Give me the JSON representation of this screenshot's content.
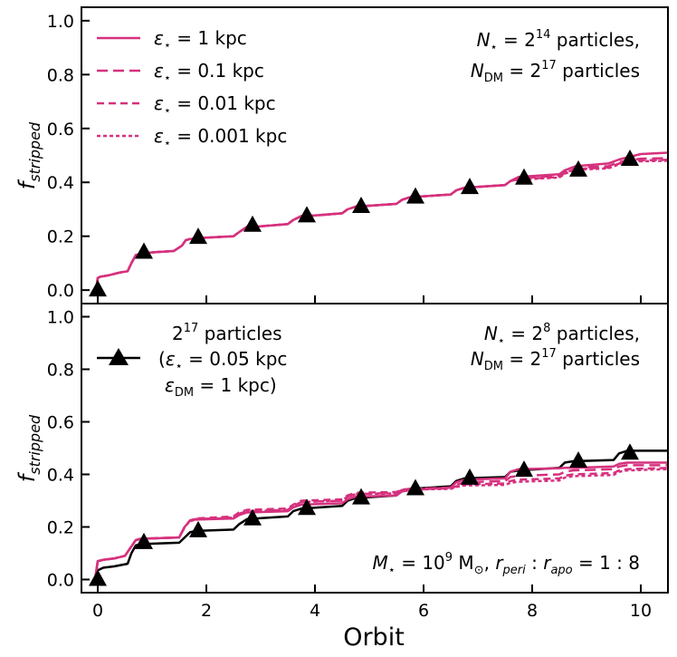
{
  "colors": {
    "magenta": "#d6317e",
    "black": "#000000"
  },
  "chart_data": [
    {
      "type": "line",
      "id": "top",
      "ylabel": "f_stripped",
      "xlim": [
        -0.3,
        10.5
      ],
      "ylim": [
        -0.05,
        1.05
      ],
      "xticks": [
        0,
        2,
        4,
        6,
        8,
        10
      ],
      "yticks": [
        "0.0",
        "0.2",
        "0.4",
        "0.6",
        "0.8",
        "1.0"
      ],
      "annotation": {
        "line1_pre": "N",
        "line1_sub": "⋆",
        "line1_mid": " = 2",
        "line1_sup": "14",
        "line1_post": " particles,",
        "line2_pre": "N",
        "line2_sub": "DM",
        "line2_mid": " = 2",
        "line2_sup": "17",
        "line2_post": " particles"
      },
      "legend": [
        {
          "label_eps": "ε",
          "label_sub": "⋆",
          "label_rest": " = 1 kpc",
          "dash": "none"
        },
        {
          "label_eps": "ε",
          "label_sub": "⋆",
          "label_rest": " = 0.1 kpc",
          "dash": "12,6"
        },
        {
          "label_eps": "ε",
          "label_sub": "⋆",
          "label_rest": " = 0.01 kpc",
          "dash": "8,5"
        },
        {
          "label_eps": "ε",
          "label_sub": "⋆",
          "label_rest": " = 0.001 kpc",
          "dash": "4,3"
        }
      ],
      "markers": {
        "x": [
          0,
          0.85,
          1.85,
          2.85,
          3.85,
          4.85,
          5.85,
          6.85,
          7.85,
          8.85,
          9.8
        ],
        "y": [
          0.0,
          0.14,
          0.195,
          0.24,
          0.275,
          0.31,
          0.345,
          0.38,
          0.415,
          0.445,
          0.485
        ]
      },
      "series": [
        {
          "name": "eps=1 kpc",
          "dash": "none",
          "x": [
            -0.1,
            -0.05,
            -0.02,
            0,
            0.05,
            0.2,
            0.4,
            0.55,
            0.62,
            0.7,
            0.8,
            1.0,
            1.4,
            1.55,
            1.62,
            1.7,
            1.8,
            2.0,
            2.5,
            2.6,
            2.75,
            3.0,
            3.5,
            3.6,
            3.75,
            4.0,
            4.5,
            4.6,
            4.75,
            5.5,
            5.6,
            5.75,
            6.5,
            6.6,
            6.75,
            7.5,
            7.6,
            7.75,
            8.5,
            8.6,
            8.8,
            9.4,
            9.6,
            9.8,
            10.0,
            10.5
          ],
          "y": [
            -0.01,
            -0.005,
            0.02,
            0.045,
            0.05,
            0.055,
            0.065,
            0.07,
            0.1,
            0.13,
            0.135,
            0.14,
            0.145,
            0.165,
            0.185,
            0.19,
            0.192,
            0.195,
            0.2,
            0.215,
            0.235,
            0.237,
            0.245,
            0.26,
            0.275,
            0.277,
            0.285,
            0.3,
            0.31,
            0.32,
            0.335,
            0.345,
            0.355,
            0.37,
            0.38,
            0.39,
            0.405,
            0.42,
            0.43,
            0.445,
            0.46,
            0.47,
            0.485,
            0.495,
            0.505,
            0.51
          ]
        },
        {
          "name": "eps=0.1 kpc",
          "dash": "12,6",
          "x": [
            -0.1,
            -0.05,
            -0.02,
            0,
            0.05,
            0.2,
            0.4,
            0.55,
            0.62,
            0.7,
            0.8,
            1.0,
            1.4,
            1.55,
            1.62,
            1.7,
            1.8,
            2.0,
            2.5,
            2.6,
            2.75,
            3.0,
            3.5,
            3.6,
            3.75,
            4.0,
            4.5,
            4.6,
            4.75,
            5.5,
            5.6,
            5.75,
            6.5,
            6.6,
            6.75,
            7.5,
            7.6,
            7.75,
            8.5,
            8.6,
            8.8,
            9.4,
            9.6,
            9.8,
            10.0,
            10.5
          ],
          "y": [
            -0.01,
            -0.005,
            0.02,
            0.045,
            0.05,
            0.055,
            0.065,
            0.07,
            0.1,
            0.13,
            0.135,
            0.14,
            0.145,
            0.165,
            0.185,
            0.19,
            0.192,
            0.195,
            0.2,
            0.215,
            0.235,
            0.237,
            0.245,
            0.26,
            0.275,
            0.277,
            0.285,
            0.3,
            0.31,
            0.32,
            0.335,
            0.345,
            0.355,
            0.37,
            0.38,
            0.39,
            0.405,
            0.415,
            0.425,
            0.44,
            0.455,
            0.46,
            0.475,
            0.482,
            0.488,
            0.49
          ]
        },
        {
          "name": "eps=0.01 kpc",
          "dash": "8,5",
          "x": [
            -0.1,
            -0.05,
            -0.02,
            0,
            0.05,
            0.2,
            0.4,
            0.55,
            0.62,
            0.7,
            0.8,
            1.0,
            1.4,
            1.55,
            1.62,
            1.7,
            1.8,
            2.0,
            2.5,
            2.6,
            2.75,
            3.0,
            3.5,
            3.6,
            3.75,
            4.0,
            4.5,
            4.6,
            4.75,
            5.5,
            5.6,
            5.75,
            6.5,
            6.6,
            6.75,
            7.5,
            7.6,
            7.75,
            8.5,
            8.6,
            8.8,
            9.4,
            9.6,
            9.8,
            10.0,
            10.5
          ],
          "y": [
            -0.01,
            -0.005,
            0.02,
            0.045,
            0.05,
            0.055,
            0.065,
            0.07,
            0.1,
            0.13,
            0.135,
            0.14,
            0.145,
            0.165,
            0.185,
            0.19,
            0.192,
            0.195,
            0.2,
            0.215,
            0.235,
            0.237,
            0.245,
            0.26,
            0.275,
            0.277,
            0.285,
            0.3,
            0.31,
            0.32,
            0.335,
            0.345,
            0.355,
            0.37,
            0.38,
            0.39,
            0.405,
            0.412,
            0.42,
            0.435,
            0.45,
            0.455,
            0.47,
            0.478,
            0.482,
            0.484
          ]
        },
        {
          "name": "eps=0.001 kpc",
          "dash": "4,3",
          "x": [
            -0.1,
            -0.05,
            -0.02,
            0,
            0.05,
            0.2,
            0.4,
            0.55,
            0.62,
            0.7,
            0.8,
            1.0,
            1.4,
            1.55,
            1.62,
            1.7,
            1.8,
            2.0,
            2.5,
            2.6,
            2.75,
            3.0,
            3.5,
            3.6,
            3.75,
            4.0,
            4.5,
            4.6,
            4.75,
            5.5,
            5.6,
            5.75,
            6.5,
            6.6,
            6.75,
            7.5,
            7.6,
            7.75,
            8.5,
            8.6,
            8.8,
            9.4,
            9.6,
            9.8,
            10.0,
            10.5
          ],
          "y": [
            -0.01,
            -0.005,
            0.02,
            0.045,
            0.05,
            0.055,
            0.065,
            0.07,
            0.1,
            0.13,
            0.135,
            0.14,
            0.145,
            0.165,
            0.185,
            0.19,
            0.192,
            0.195,
            0.2,
            0.215,
            0.235,
            0.237,
            0.245,
            0.26,
            0.275,
            0.277,
            0.285,
            0.3,
            0.31,
            0.32,
            0.335,
            0.345,
            0.355,
            0.37,
            0.38,
            0.39,
            0.405,
            0.41,
            0.418,
            0.432,
            0.447,
            0.452,
            0.467,
            0.474,
            0.478,
            0.48
          ]
        }
      ]
    },
    {
      "type": "line",
      "id": "bottom",
      "ylabel": "f_stripped",
      "xlabel": "Orbit",
      "xlim": [
        -0.3,
        10.5
      ],
      "ylim": [
        -0.05,
        1.05
      ],
      "xticks": [
        0,
        2,
        4,
        6,
        8,
        10
      ],
      "xticklabels": [
        "0",
        "2",
        "4",
        "6",
        "8",
        "10"
      ],
      "yticks": [
        "0.0",
        "0.2",
        "0.4",
        "0.6",
        "0.8",
        "1.0"
      ],
      "annotation": {
        "line1_pre": "N",
        "line1_sub": "⋆",
        "line1_mid": " = 2",
        "line1_sup": "8",
        "line1_post": " particles,",
        "line2_pre": "N",
        "line2_sub": "DM",
        "line2_mid": " = 2",
        "line2_sup": "17",
        "line2_post": " particles"
      },
      "annotation2": {
        "m": "M",
        "m_sub": "⋆",
        "eq": " = 10",
        "sup": "9",
        "unit": " M",
        "unit_sub": "⊙",
        "sep": ", ",
        "r1": "r",
        "r1_sub": "peri",
        "colon": " : ",
        "r2": "r",
        "r2_sub": "apo",
        "ratio": " = 1 : 8"
      },
      "legend": {
        "line1_base": "2",
        "line1_sup": "17",
        "line1_rest": " particles",
        "line2_open": "(",
        "line2_eps": "ε",
        "line2_sub": "⋆",
        "line2_rest": " = 0.05 kpc",
        "line3_eps": "ε",
        "line3_sub": "DM",
        "line3_rest": " = 1 kpc)"
      },
      "markers": {
        "x": [
          0,
          0.85,
          1.85,
          2.85,
          3.85,
          4.85,
          5.85,
          6.85,
          7.85,
          8.85,
          9.8
        ],
        "y": [
          0.0,
          0.14,
          0.185,
          0.23,
          0.27,
          0.31,
          0.345,
          0.385,
          0.415,
          0.45,
          0.48
        ]
      },
      "series": [
        {
          "name": "2^17 particles",
          "color": "black",
          "dash": "none",
          "x": [
            -0.1,
            -0.05,
            0,
            0.1,
            0.3,
            0.55,
            0.62,
            0.7,
            0.8,
            1.5,
            1.6,
            1.7,
            1.8,
            2.5,
            2.6,
            2.75,
            3.5,
            3.6,
            3.75,
            4.5,
            4.6,
            4.75,
            5.5,
            5.6,
            5.75,
            6.5,
            6.6,
            6.75,
            7.5,
            7.6,
            7.75,
            8.5,
            8.6,
            8.75,
            9.5,
            9.6,
            9.75,
            10.5
          ],
          "y": [
            -0.01,
            0.0,
            0.035,
            0.045,
            0.05,
            0.06,
            0.1,
            0.13,
            0.135,
            0.14,
            0.16,
            0.18,
            0.185,
            0.19,
            0.21,
            0.23,
            0.24,
            0.26,
            0.27,
            0.28,
            0.3,
            0.31,
            0.32,
            0.34,
            0.345,
            0.355,
            0.375,
            0.385,
            0.39,
            0.41,
            0.415,
            0.425,
            0.445,
            0.45,
            0.455,
            0.48,
            0.49,
            0.49
          ]
        },
        {
          "name": "eps=1 kpc",
          "color": "magenta",
          "dash": "none",
          "x": [
            -0.1,
            -0.05,
            0,
            0.1,
            0.3,
            0.5,
            0.6,
            0.7,
            0.8,
            1.5,
            1.6,
            1.7,
            1.8,
            2.5,
            2.6,
            2.75,
            3.5,
            3.6,
            3.75,
            4.5,
            4.6,
            4.75,
            5.5,
            5.6,
            5.75,
            6.5,
            6.6,
            6.75,
            7.5,
            7.6,
            7.75,
            8.5,
            8.6,
            8.75,
            9.5,
            9.6,
            9.75,
            10.5
          ],
          "y": [
            -0.01,
            0.0,
            0.07,
            0.075,
            0.08,
            0.09,
            0.12,
            0.15,
            0.155,
            0.16,
            0.2,
            0.225,
            0.228,
            0.232,
            0.245,
            0.255,
            0.26,
            0.275,
            0.285,
            0.29,
            0.305,
            0.315,
            0.32,
            0.335,
            0.34,
            0.35,
            0.37,
            0.38,
            0.385,
            0.41,
            0.42,
            0.423,
            0.425,
            0.425,
            0.43,
            0.44,
            0.445,
            0.445
          ]
        },
        {
          "name": "eps=0.1 kpc",
          "color": "magenta",
          "dash": "12,6",
          "x": [
            -0.1,
            -0.05,
            0,
            0.1,
            0.3,
            0.5,
            0.6,
            0.7,
            0.8,
            1.5,
            1.6,
            1.7,
            1.8,
            2.5,
            2.6,
            2.75,
            3.5,
            3.6,
            3.75,
            4.5,
            4.6,
            4.75,
            5.5,
            5.6,
            5.75,
            6.5,
            6.6,
            6.75,
            7.5,
            7.6,
            7.75,
            8.5,
            8.6,
            8.75,
            9.5,
            9.6,
            9.75,
            10.5
          ],
          "y": [
            -0.01,
            0.0,
            0.07,
            0.075,
            0.08,
            0.09,
            0.12,
            0.15,
            0.155,
            0.16,
            0.2,
            0.225,
            0.23,
            0.235,
            0.25,
            0.26,
            0.265,
            0.28,
            0.295,
            0.3,
            0.315,
            0.325,
            0.33,
            0.34,
            0.345,
            0.35,
            0.36,
            0.37,
            0.375,
            0.39,
            0.395,
            0.4,
            0.41,
            0.415,
            0.42,
            0.43,
            0.435,
            0.435
          ]
        },
        {
          "name": "eps=0.01 kpc",
          "color": "magenta",
          "dash": "8,5",
          "x": [
            -0.1,
            -0.05,
            0,
            0.1,
            0.3,
            0.5,
            0.6,
            0.7,
            0.8,
            1.5,
            1.6,
            1.7,
            1.8,
            2.5,
            2.6,
            2.75,
            3.5,
            3.6,
            3.75,
            4.5,
            4.6,
            4.75,
            5.5,
            5.6,
            5.75,
            6.5,
            6.6,
            6.75,
            7.5,
            7.6,
            7.75,
            8.5,
            8.6,
            8.75,
            9.5,
            9.6,
            9.75,
            10.5
          ],
          "y": [
            -0.01,
            0.0,
            0.07,
            0.075,
            0.08,
            0.09,
            0.12,
            0.15,
            0.155,
            0.16,
            0.2,
            0.225,
            0.232,
            0.24,
            0.255,
            0.265,
            0.27,
            0.285,
            0.3,
            0.305,
            0.32,
            0.33,
            0.333,
            0.342,
            0.345,
            0.347,
            0.355,
            0.362,
            0.365,
            0.375,
            0.38,
            0.385,
            0.395,
            0.4,
            0.405,
            0.415,
            0.42,
            0.425
          ]
        },
        {
          "name": "eps=0.001 kpc",
          "color": "magenta",
          "dash": "4,3",
          "x": [
            -0.1,
            -0.05,
            0,
            0.1,
            0.3,
            0.5,
            0.6,
            0.7,
            0.8,
            1.5,
            1.6,
            1.7,
            1.8,
            2.5,
            2.6,
            2.75,
            3.5,
            3.6,
            3.75,
            4.5,
            4.6,
            4.75,
            5.5,
            5.6,
            5.75,
            6.5,
            6.6,
            6.75,
            7.5,
            7.6,
            7.75,
            8.5,
            8.6,
            8.75,
            9.5,
            9.6,
            9.75,
            10.5
          ],
          "y": [
            -0.01,
            0.0,
            0.07,
            0.075,
            0.08,
            0.09,
            0.12,
            0.15,
            0.155,
            0.16,
            0.2,
            0.222,
            0.228,
            0.236,
            0.25,
            0.26,
            0.265,
            0.28,
            0.295,
            0.3,
            0.315,
            0.325,
            0.328,
            0.338,
            0.342,
            0.345,
            0.352,
            0.358,
            0.36,
            0.368,
            0.372,
            0.377,
            0.388,
            0.393,
            0.398,
            0.41,
            0.415,
            0.42
          ]
        }
      ]
    }
  ]
}
